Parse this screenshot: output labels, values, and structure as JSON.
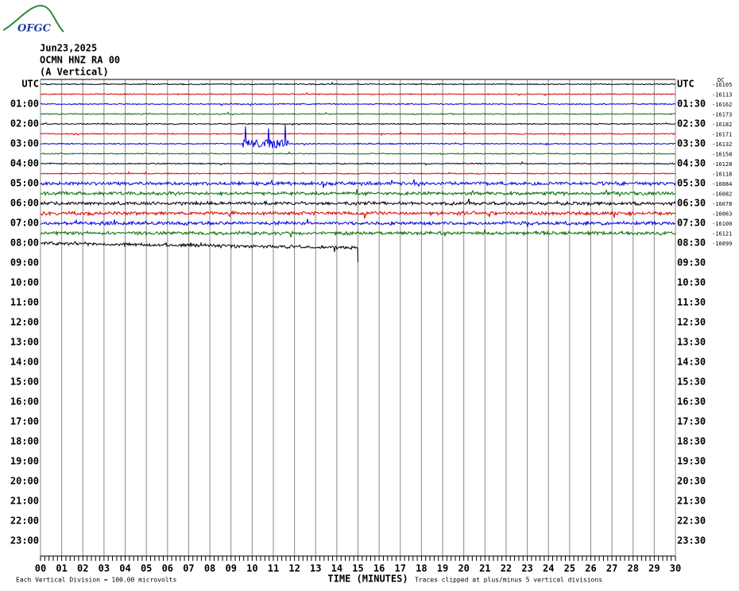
{
  "header": {
    "logo": "OFGC",
    "date": "Jun23,2025",
    "station": "OCMN HNZ RA 00",
    "component": "(A Vertical)"
  },
  "left_labels": [
    "UTC",
    "01:00",
    "02:00",
    "03:00",
    "04:00",
    "05:00",
    "06:00",
    "07:00",
    "08:00",
    "09:00",
    "10:00",
    "11:00",
    "12:00",
    "13:00",
    "14:00",
    "15:00",
    "16:00",
    "17:00",
    "18:00",
    "19:00",
    "20:00",
    "21:00",
    "22:00",
    "23:00"
  ],
  "right_labels": [
    "UTC",
    "01:30",
    "02:30",
    "03:30",
    "04:30",
    "05:30",
    "06:30",
    "07:30",
    "08:30",
    "09:30",
    "10:30",
    "11:30",
    "12:30",
    "13:30",
    "14:30",
    "15:30",
    "16:30",
    "17:30",
    "18:30",
    "19:30",
    "20:30",
    "21:30",
    "22:30",
    "23:30"
  ],
  "offset_header": "DC",
  "offsets": [
    -16105,
    -16113,
    -16162,
    -16173,
    -16182,
    -16171,
    -16132,
    -16158,
    -16128,
    -16118,
    -16084,
    -16082,
    -16078,
    -16063,
    -16100,
    -16121,
    -16099
  ],
  "trace_colors": [
    "#000000",
    "#e00000",
    "#0000e0",
    "#007000"
  ],
  "x_labels": [
    "00",
    "01",
    "02",
    "03",
    "04",
    "05",
    "06",
    "07",
    "08",
    "09",
    "10",
    "11",
    "12",
    "13",
    "14",
    "15",
    "16",
    "17",
    "18",
    "19",
    "20",
    "21",
    "22",
    "23",
    "24",
    "25",
    "26",
    "27",
    "28",
    "29",
    "30"
  ],
  "x_axis_title": "TIME (MINUTES)",
  "footer_left": "Each Vertical Division =  100.00 microvolts",
  "footer_right": "Traces clipped at plus/minus 5 vertical divisions"
}
